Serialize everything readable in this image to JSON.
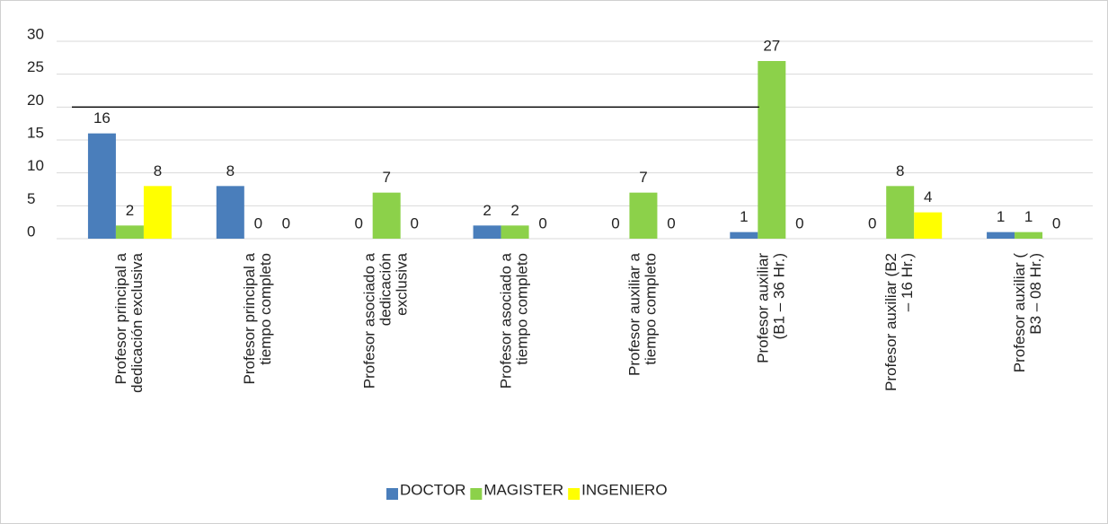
{
  "chart_data": {
    "type": "bar",
    "categories": [
      [
        "Profesor principal a",
        "dedicación exclusiva"
      ],
      [
        "Profesor principal a",
        "tiempo completo"
      ],
      [
        "Profesor asociado a",
        "dedicación",
        "exclusiva"
      ],
      [
        "Profesor asociado a",
        "tiempo completo"
      ],
      [
        "Profesor auxiliar a",
        "tiempo completo"
      ],
      [
        "Profesor auxiliar",
        "(B1 – 36 Hr.)"
      ],
      [
        "Profesor auxiliar (B2",
        "– 16 Hr.)"
      ],
      [
        "Profesor auxiliar (",
        "B3 – 08 Hr.)"
      ]
    ],
    "series": [
      {
        "name": "DOCTOR",
        "color": "#4a7ebb",
        "values": [
          16,
          8,
          0,
          2,
          0,
          1,
          0,
          1
        ]
      },
      {
        "name": "MAGISTER",
        "color": "#8cd14a",
        "values": [
          2,
          0,
          7,
          2,
          7,
          27,
          8,
          1
        ]
      },
      {
        "name": "INGENIERO",
        "color": "#ffff00",
        "values": [
          8,
          0,
          0,
          0,
          0,
          0,
          4,
          0
        ]
      }
    ],
    "ylim": [
      0,
      30
    ],
    "yticks": [
      0,
      5,
      10,
      15,
      20,
      25,
      30
    ],
    "grid": true,
    "hline": 20,
    "legend": "bottom"
  }
}
